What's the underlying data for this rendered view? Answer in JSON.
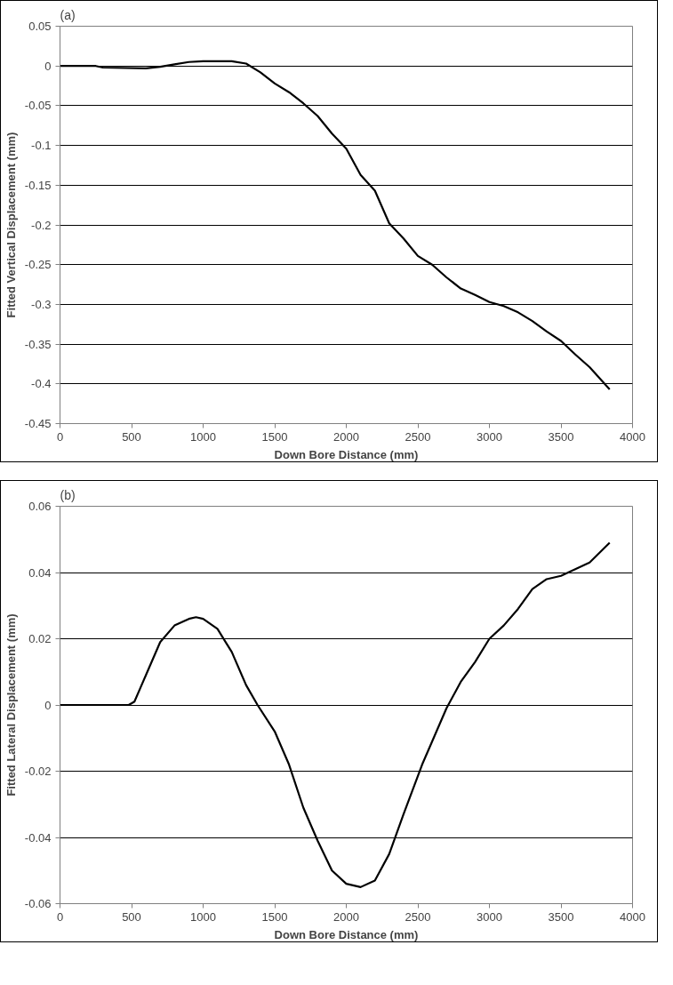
{
  "chart_data": [
    {
      "type": "line",
      "title": "(a)",
      "xlabel": "Down Bore Distance (mm)",
      "ylabel": "Fitted Vertical Displacement (mm)",
      "x": [
        0,
        250,
        300,
        600,
        700,
        800,
        900,
        1000,
        1200,
        1300,
        1400,
        1500,
        1600,
        1700,
        1800,
        1900,
        2000,
        2100,
        2200,
        2300,
        2400,
        2500,
        2600,
        2700,
        2800,
        2900,
        3000,
        3100,
        3200,
        3300,
        3400,
        3500,
        3600,
        3700,
        3840
      ],
      "series": [
        {
          "color": "#000000",
          "values": [
            0,
            0,
            -0.002,
            -0.003,
            -0.001,
            0.002,
            0.005,
            0.006,
            0.006,
            0.003,
            -0.008,
            -0.022,
            -0.033,
            -0.047,
            -0.063,
            -0.085,
            -0.104,
            -0.137,
            -0.157,
            -0.198,
            -0.217,
            -0.239,
            -0.25,
            -0.266,
            -0.28,
            -0.288,
            -0.297,
            -0.302,
            -0.31,
            -0.321,
            -0.334,
            -0.346,
            -0.363,
            -0.379,
            -0.407
          ]
        }
      ],
      "xlim": [
        0,
        4000
      ],
      "xticks": [
        0,
        500,
        1000,
        1500,
        2000,
        2500,
        3000,
        3500,
        4000
      ],
      "ylim": [
        -0.45,
        0.05
      ],
      "yticks": [
        0.05,
        0,
        -0.05,
        -0.1,
        -0.15,
        -0.2,
        -0.25,
        -0.3,
        -0.35,
        -0.4,
        -0.45
      ],
      "grid": "y",
      "marker": "none",
      "line_style": "solid"
    },
    {
      "type": "line",
      "title": "(b)",
      "xlabel": "Down Bore Distance (mm)",
      "ylabel": "Fitted Lateral Displacement (mm)",
      "x": [
        0,
        480,
        520,
        560,
        600,
        700,
        800,
        900,
        950,
        1000,
        1100,
        1200,
        1300,
        1380,
        1500,
        1600,
        1700,
        1800,
        1900,
        2000,
        2100,
        2200,
        2300,
        2400,
        2530,
        2600,
        2700,
        2800,
        2900,
        3000,
        3100,
        3200,
        3300,
        3400,
        3500,
        3600,
        3700,
        3840
      ],
      "series": [
        {
          "color": "#000000",
          "values": [
            0,
            0,
            0.001,
            0.005,
            0.009,
            0.019,
            0.024,
            0.026,
            0.0265,
            0.026,
            0.023,
            0.016,
            0.006,
            0,
            -0.008,
            -0.018,
            -0.031,
            -0.041,
            -0.05,
            -0.054,
            -0.055,
            -0.053,
            -0.045,
            -0.033,
            -0.018,
            -0.011,
            -0.001,
            0.007,
            0.013,
            0.02,
            0.024,
            0.029,
            0.035,
            0.038,
            0.039,
            0.041,
            0.043,
            0.049
          ]
        }
      ],
      "xlim": [
        0,
        4000
      ],
      "xticks": [
        0,
        500,
        1000,
        1500,
        2000,
        2500,
        3000,
        3500,
        4000
      ],
      "ylim": [
        -0.06,
        0.06
      ],
      "yticks": [
        0.06,
        0.04,
        0.02,
        0,
        -0.02,
        -0.04,
        -0.06
      ],
      "grid": "y",
      "marker": "none",
      "line_style": "solid"
    }
  ]
}
